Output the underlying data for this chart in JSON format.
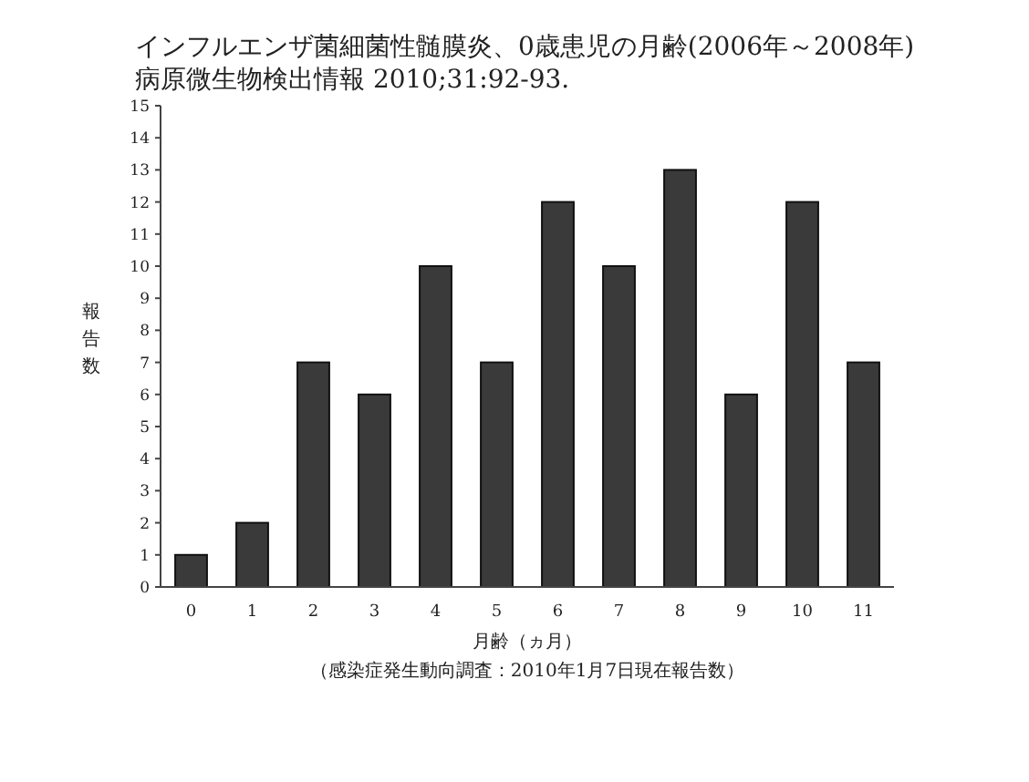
{
  "chart_data": {
    "type": "bar",
    "title": "インフルエンザ菌細菌性髄膜炎、0歳患児の月齢(2006年～2008年) 病原微生物検出情報 2010;31:92-93.",
    "xlabel": "月齢（ヵ月）",
    "ylabel": "報告数",
    "annotations": [
      "（感染症発生動向調査：2010年1月7日現在報告数）"
    ],
    "categories": [
      "0",
      "1",
      "2",
      "3",
      "4",
      "5",
      "6",
      "7",
      "8",
      "9",
      "10",
      "11"
    ],
    "values": [
      1,
      2,
      7,
      6,
      10,
      7,
      12,
      10,
      13,
      6,
      12,
      7
    ],
    "color": "#3a3a3a",
    "ylim": [
      0,
      15
    ],
    "yticks": [
      0,
      1,
      2,
      3,
      4,
      5,
      6,
      7,
      8,
      9,
      10,
      11,
      12,
      13,
      14,
      15
    ],
    "grid": false
  }
}
